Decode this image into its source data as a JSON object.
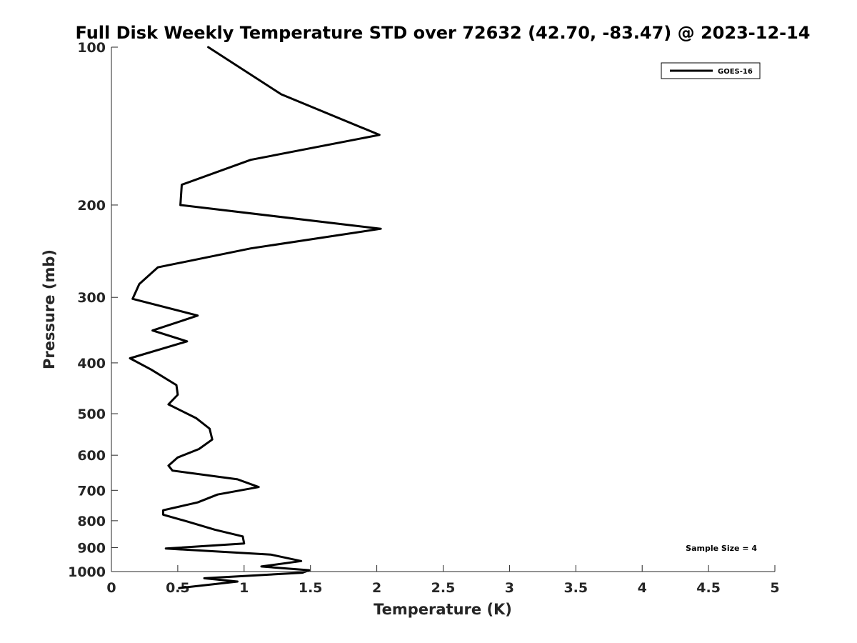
{
  "chart_data": {
    "type": "line",
    "title": "Full Disk Weekly Temperature STD over 72632 (42.70, -83.47) @ 2023-12-14",
    "xlabel": "Temperature (K)",
    "ylabel": "Pressure (mb)",
    "xlim": [
      0,
      5
    ],
    "ylim": [
      100,
      1000
    ],
    "y_scale": "log",
    "y_reversed": true,
    "x_ticks": [
      "0",
      "0.5",
      "1",
      "1.5",
      "2",
      "2.5",
      "3",
      "3.5",
      "4",
      "4.5",
      "5"
    ],
    "y_ticks": [
      "100",
      "200",
      "300",
      "400",
      "500",
      "600",
      "700",
      "800",
      "900",
      "1000"
    ],
    "grid": false,
    "legend_position": "top-right",
    "annotation": "Sample Size = 4",
    "series": [
      {
        "name": "GOES-16",
        "color": "#000000",
        "x": [
          0.73,
          1.28,
          2.02,
          1.05,
          0.53,
          0.52,
          2.03,
          1.05,
          0.35,
          0.21,
          0.16,
          0.65,
          0.31,
          0.57,
          0.14,
          0.3,
          0.49,
          0.5,
          0.43,
          0.64,
          0.74,
          0.76,
          0.66,
          0.5,
          0.43,
          0.46,
          0.95,
          1.11,
          0.8,
          0.65,
          0.39,
          0.39,
          0.59,
          0.78,
          0.99,
          1.0,
          0.41,
          1.2,
          1.43,
          1.13,
          1.49,
          1.44,
          0.7,
          0.95,
          0.51
        ],
        "y": [
          100,
          123,
          147,
          164,
          183,
          200,
          222,
          242,
          263,
          283,
          302,
          325,
          347,
          364,
          392,
          412,
          441,
          460,
          480,
          510,
          534,
          560,
          584,
          606,
          628,
          642,
          667,
          690,
          713,
          738,
          764,
          779,
          805,
          832,
          857,
          884,
          904,
          928,
          955,
          978,
          994,
          1005,
          1030,
          1045,
          1075
        ]
      }
    ]
  }
}
